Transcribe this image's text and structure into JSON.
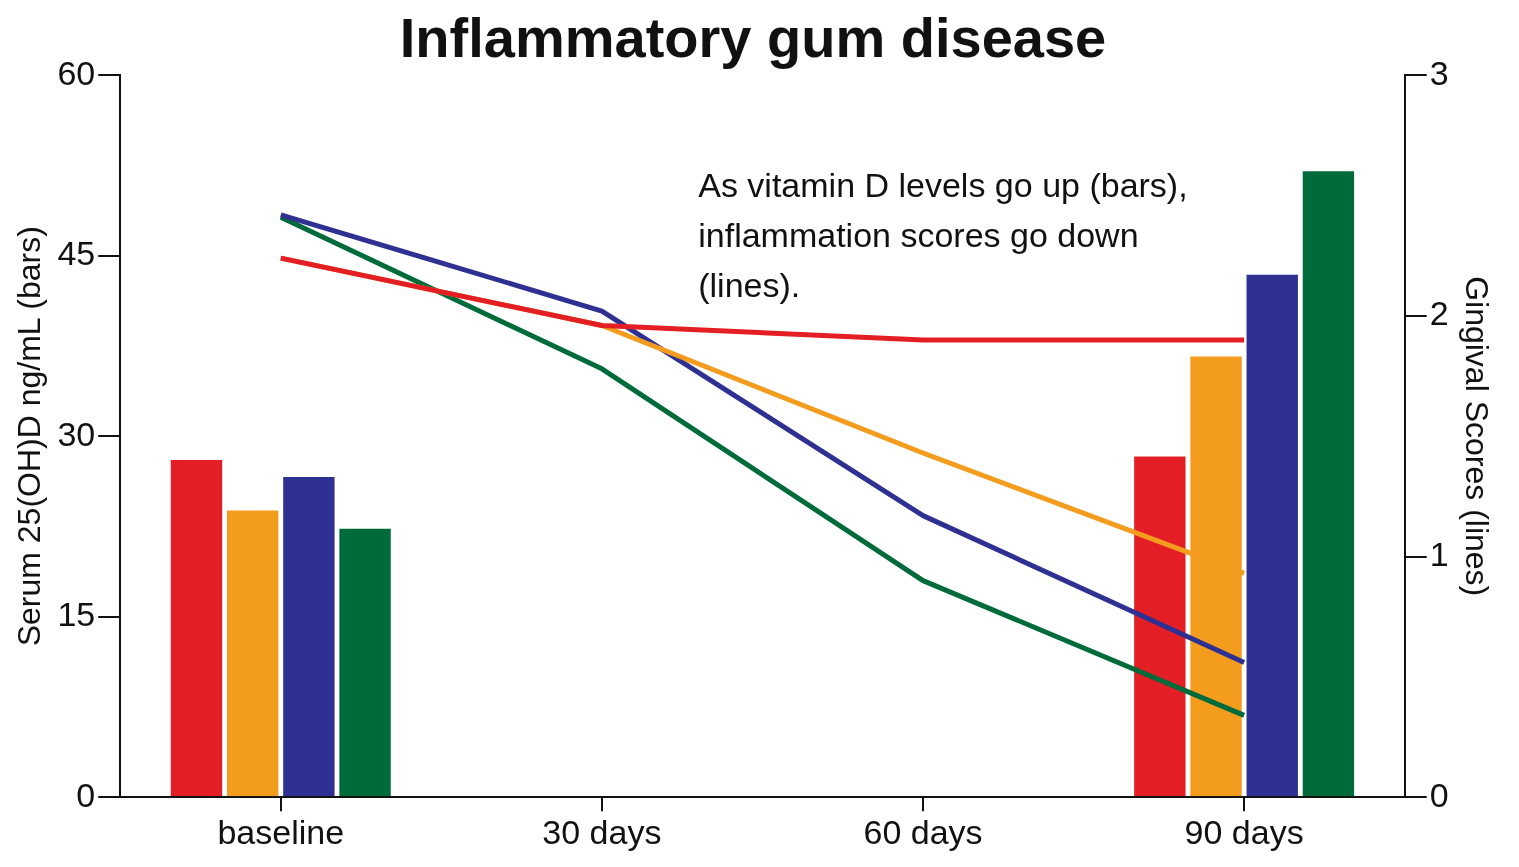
{
  "chart_data": {
    "type": "bar",
    "title": "Inflammatory gum disease",
    "ylabel": "Serum 25(OH)D ng/mL (bars)",
    "y2label": "Gingival Scores (lines)",
    "categories": [
      "baseline",
      "30 days",
      "60 days",
      "90 days"
    ],
    "series": [
      {
        "color": "#e31e24",
        "values": [
          28.1,
          null,
          null,
          28.4
        ]
      },
      {
        "color": "#f39c1e",
        "values": [
          23.9,
          null,
          null,
          36.7
        ]
      },
      {
        "color": "#2e3192",
        "values": [
          26.7,
          null,
          null,
          43.5
        ]
      },
      {
        "color": "#006b3a",
        "values": [
          22.4,
          null,
          null,
          52.1
        ]
      },
      {
        "type": "line",
        "axis": "y2",
        "color": "#e31e24",
        "values": [
          2.24,
          1.96,
          1.9,
          1.9
        ]
      },
      {
        "type": "line",
        "axis": "y2",
        "color": "#f39c1e",
        "values": [
          2.24,
          1.96,
          1.43,
          0.93
        ]
      },
      {
        "type": "line",
        "axis": "y2",
        "color": "#2e3192",
        "values": [
          2.42,
          2.02,
          1.17,
          0.56
        ]
      },
      {
        "type": "line",
        "axis": "y2",
        "color": "#006b3a",
        "values": [
          2.41,
          1.78,
          0.9,
          0.34
        ]
      }
    ],
    "ylim": [
      0,
      60
    ],
    "yticks": [
      0,
      15,
      30,
      45,
      60
    ],
    "y2lim": [
      0,
      3
    ],
    "y2ticks": [
      0,
      1,
      2,
      3
    ],
    "annotations": [
      "As vitamin D levels go up (bars), inflammation scores go down (lines)."
    ],
    "grid": false,
    "legend": false
  }
}
